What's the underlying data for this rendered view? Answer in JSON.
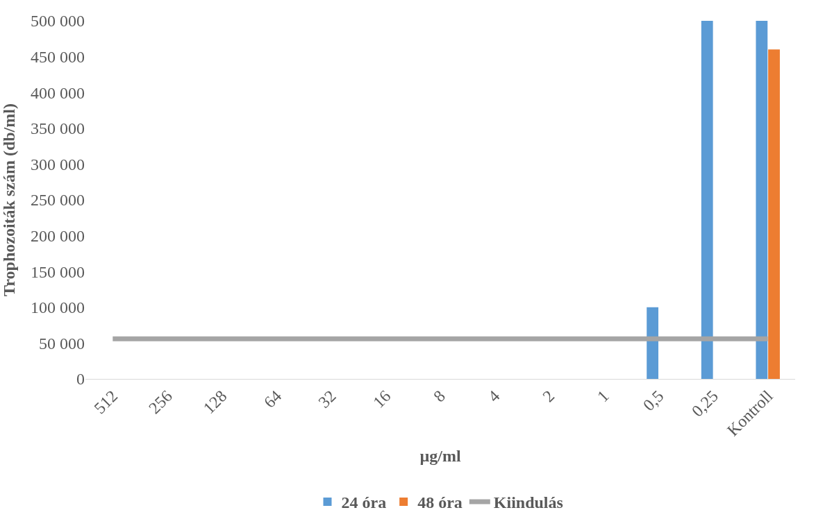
{
  "chart_data": {
    "type": "bar",
    "xlabel": "µg/ml",
    "ylabel": "Trophozoiták szám (db/ml)",
    "categories": [
      "512",
      "256",
      "128",
      "64",
      "32",
      "16",
      "8",
      "4",
      "2",
      "1",
      "0,5",
      "0,25",
      "Kontroll"
    ],
    "series": [
      {
        "name": "24 óra",
        "color": "#5b9bd5",
        "values": [
          0,
          0,
          0,
          0,
          0,
          0,
          0,
          0,
          0,
          0,
          100000,
          500000,
          500000
        ]
      },
      {
        "name": "48 óra",
        "color": "#ed7d31",
        "values": [
          0,
          0,
          0,
          0,
          0,
          0,
          0,
          0,
          0,
          0,
          0,
          0,
          460000
        ]
      },
      {
        "name": "Kiindulás",
        "type": "line",
        "color": "#a5a5a5",
        "values": [
          56000,
          56000,
          56000,
          56000,
          56000,
          56000,
          56000,
          56000,
          56000,
          56000,
          56000,
          56000,
          56000
        ]
      }
    ],
    "ylim": [
      0,
      500000
    ],
    "yticks": [
      0,
      {
        "value": 50000,
        "label": "50 000"
      },
      {
        "value": 100000,
        "label": "100 000"
      },
      {
        "value": 150000,
        "label": "150 000"
      },
      {
        "value": 200000,
        "label": "200 000"
      },
      {
        "value": 250000,
        "label": "250 000"
      },
      {
        "value": 300000,
        "label": "300 000"
      },
      {
        "value": 350000,
        "label": "350 000"
      },
      {
        "value": 400000,
        "label": "400 000"
      },
      {
        "value": 450000,
        "label": "450 000"
      },
      {
        "value": 500000,
        "label": "500 000"
      }
    ],
    "legend": "bottom"
  }
}
